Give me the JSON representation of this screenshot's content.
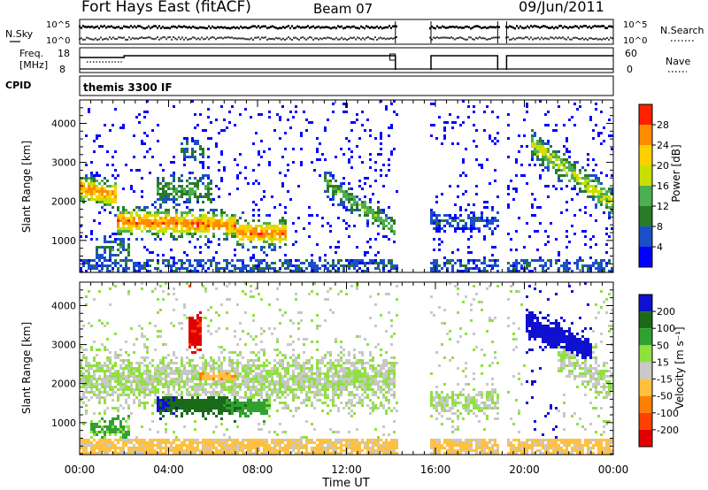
{
  "header": {
    "title": "Fort Hays East (fitACF)",
    "beam": "Beam 07",
    "date": "09/Jun/2011"
  },
  "strips": {
    "nsky_label": "N.Sky",
    "nsky_ticks": [
      "10^5",
      "10^0"
    ],
    "nsearch_label": "N.Search",
    "freq_label_1": "Freq.",
    "freq_label_2": "[MHz]",
    "freq_ticks": [
      "18",
      "8"
    ],
    "nave_ticks": [
      "60",
      "0"
    ],
    "nave_label": "Nave",
    "cpid_label": "CPID",
    "cpid_value": "themis 3300 IF"
  },
  "colors": {
    "power_scale": [
      "#0000ff",
      "#1a4fc8",
      "#2a7a2a",
      "#4caf50",
      "#c8e000",
      "#ffd000",
      "#ff8c00",
      "#ff2000"
    ],
    "velocity_scale": [
      "#1010d0",
      "#1a6a1a",
      "#30a030",
      "#90e040",
      "#c8c8c8",
      "#ffc040",
      "#ff8000",
      "#ff4000",
      "#e00000"
    ]
  },
  "chart_data": [
    {
      "type": "heatmap",
      "panel": "power",
      "xlabel": "Time UT",
      "ylabel": "Slant Range [km]",
      "x_ticks": [
        "00:00",
        "04:00",
        "08:00",
        "12:00",
        "16:00",
        "20:00",
        "00:00"
      ],
      "x_range_hours": [
        0,
        24
      ],
      "ylim": [
        180,
        4600
      ],
      "y_ticks": [
        1000,
        2000,
        3000,
        4000
      ],
      "colorbar_label": "Power [dB]",
      "colorbar_ticks": [
        4,
        8,
        12,
        16,
        20,
        24,
        28
      ],
      "data_gaps_hours": [
        [
          14.25,
          15.75
        ],
        [
          18.9,
          19.15
        ]
      ],
      "regions": [
        {
          "t": [
            0.0,
            1.6
          ],
          "r": [
            2000,
            2700
          ],
          "level": "20-24 dB"
        },
        {
          "t": [
            1.6,
            4.5
          ],
          "r": [
            1200,
            1900
          ],
          "level": "24-28 dB"
        },
        {
          "t": [
            4.0,
            6.5
          ],
          "r": [
            1200,
            1700
          ],
          "level": "20-28 dB"
        },
        {
          "t": [
            11.5,
            14.0
          ],
          "r": [
            1300,
            2600
          ],
          "level": "8-16 dB"
        },
        {
          "t": [
            15.8,
            18.8
          ],
          "r": [
            1300,
            1800
          ],
          "level": "4-8 dB"
        },
        {
          "t": [
            21.0,
            23.8
          ],
          "r": [
            2000,
            3300
          ],
          "level": "12-24 dB"
        }
      ]
    },
    {
      "type": "heatmap",
      "panel": "velocity",
      "xlabel": "Time UT",
      "ylabel": "Slant Range [km]",
      "x_ticks": [
        "00:00",
        "04:00",
        "08:00",
        "12:00",
        "16:00",
        "20:00",
        "00:00"
      ],
      "x_range_hours": [
        0,
        24
      ],
      "ylim": [
        180,
        4600
      ],
      "y_ticks": [
        1000,
        2000,
        3000,
        4000
      ],
      "colorbar_label": "Velocity [m s⁻¹]",
      "colorbar_ticks": [
        200,
        100,
        50,
        15,
        -15,
        -50,
        -100,
        -200
      ],
      "data_gaps_hours": [
        [
          14.25,
          15.75
        ],
        [
          18.9,
          19.15
        ]
      ],
      "regions": [
        {
          "t": [
            4.9,
            5.5
          ],
          "r": [
            2950,
            3800
          ],
          "level": "< -200 m/s"
        },
        {
          "t": [
            3.5,
            8.5
          ],
          "r": [
            1200,
            1800
          ],
          "level": "100-200 m/s"
        },
        {
          "t": [
            0.0,
            14.0
          ],
          "r": [
            1500,
            2900
          ],
          "level": "-15 to 15 m/s"
        },
        {
          "t": [
            20.0,
            22.8
          ],
          "r": [
            2900,
            3800
          ],
          "level": "100-200 m/s"
        },
        {
          "t": [
            0.0,
            24.0
          ],
          "r": [
            180,
            600
          ],
          "level": "-50 to -15 m/s"
        }
      ]
    }
  ]
}
